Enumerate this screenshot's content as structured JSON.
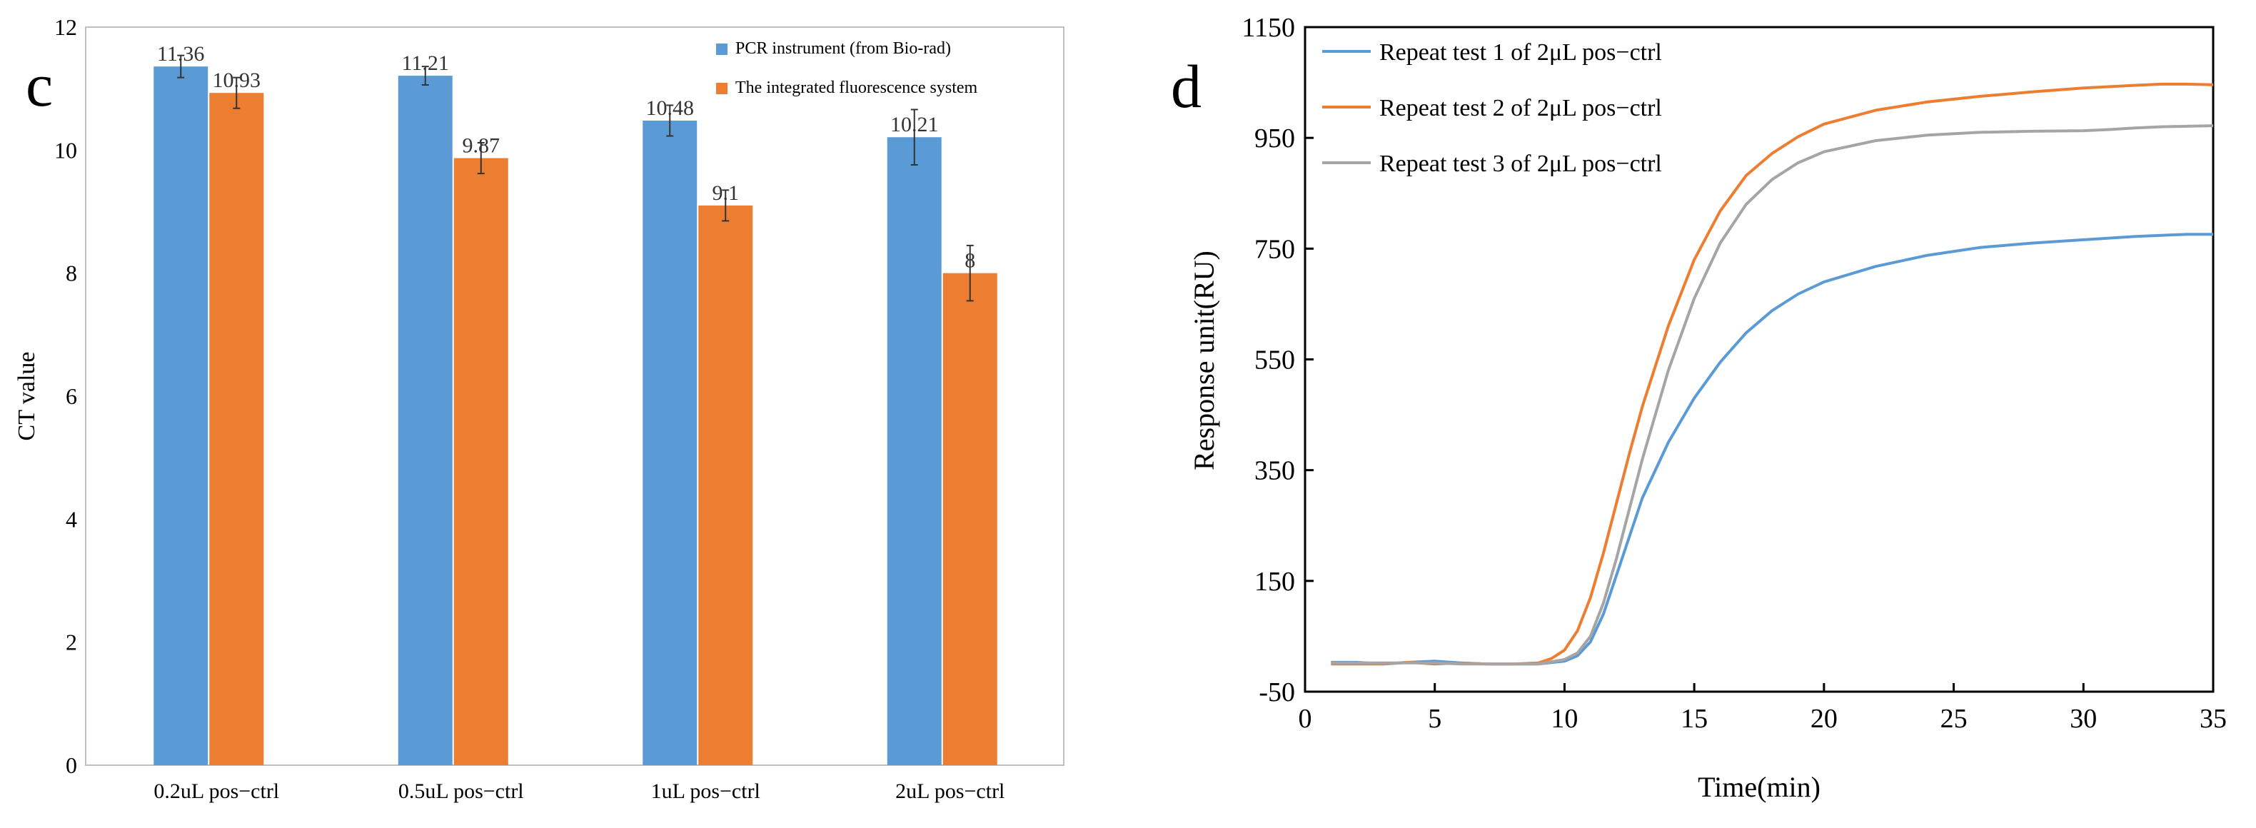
{
  "panels": {
    "left_label": "c",
    "right_label": "d"
  },
  "chart_data": [
    {
      "type": "bar",
      "panel": "c",
      "title": "",
      "xlabel": "",
      "ylabel": "CT value",
      "ylim": [
        0,
        12
      ],
      "yticks": [
        0,
        2,
        4,
        6,
        8,
        10,
        12
      ],
      "categories": [
        "0.2uL pos−ctrl",
        "0.5uL pos−ctrl",
        "1uL  pos−ctrl",
        "2uL  pos−ctrl"
      ],
      "series": [
        {
          "name": "PCR instrument (from Bio-rad)",
          "color": "#5b9bd5",
          "values": [
            11.36,
            11.21,
            10.48,
            10.21
          ],
          "labels": [
            "11.36",
            "11.21",
            "10.48",
            "10.21"
          ],
          "errors": [
            0.18,
            0.15,
            0.25,
            0.45
          ]
        },
        {
          "name": "The integrated fluorescence system",
          "color": "#ed7d31",
          "values": [
            10.93,
            9.87,
            9.1,
            8.0
          ],
          "labels": [
            "10.93",
            "9.87",
            "9.1",
            "8"
          ],
          "errors": [
            0.25,
            0.25,
            0.25,
            0.45
          ]
        }
      ],
      "legend": "top-right",
      "grid": false
    },
    {
      "type": "line",
      "panel": "d",
      "title": "",
      "xlabel": "Time(min)",
      "ylabel": "Response unit(RU)",
      "xlim": [
        0,
        35
      ],
      "ylim": [
        -50,
        1150
      ],
      "xticks": [
        0,
        5,
        10,
        15,
        20,
        25,
        30,
        35
      ],
      "yticks": [
        -50,
        150,
        350,
        550,
        750,
        950,
        1150
      ],
      "legend": "top-left",
      "grid": false,
      "series": [
        {
          "name": "Repeat test 1 of 2μL pos−ctrl",
          "color": "#5b9bd5",
          "x": [
            1,
            2,
            3,
            4,
            5,
            6,
            7,
            8,
            9,
            10,
            10.5,
            11,
            11.5,
            12,
            12.5,
            13,
            14,
            15,
            16,
            17,
            18,
            19,
            20,
            22,
            24,
            26,
            28,
            30,
            32,
            33,
            34,
            35
          ],
          "y": [
            3,
            3,
            0,
            3,
            5,
            2,
            0,
            0,
            0,
            5,
            15,
            40,
            90,
            160,
            230,
            300,
            400,
            480,
            545,
            598,
            638,
            668,
            690,
            718,
            738,
            752,
            760,
            766,
            772,
            774,
            776,
            776
          ]
        },
        {
          "name": "Repeat test 2 of 2μL pos−ctrl",
          "color": "#ed7d31",
          "x": [
            1,
            2,
            3,
            4,
            5,
            6,
            7,
            8,
            9,
            9.5,
            10,
            10.5,
            11,
            11.5,
            12,
            12.5,
            13,
            14,
            15,
            16,
            17,
            18,
            19,
            20,
            22,
            24,
            26,
            28,
            30,
            32,
            33,
            34,
            35
          ],
          "y": [
            0,
            0,
            0,
            3,
            0,
            2,
            0,
            0,
            2,
            10,
            25,
            60,
            120,
            200,
            290,
            380,
            465,
            610,
            730,
            818,
            882,
            922,
            952,
            975,
            1000,
            1015,
            1025,
            1033,
            1040,
            1045,
            1047,
            1047,
            1046
          ]
        },
        {
          "name": "Repeat test 3 of 2μL pos−ctrl",
          "color": "#a5a5a5",
          "x": [
            1,
            2,
            3,
            4,
            5,
            6,
            7,
            8,
            9,
            10,
            10.5,
            11,
            11.5,
            12,
            12.5,
            13,
            14,
            15,
            16,
            17,
            18,
            19,
            20,
            22,
            24,
            26,
            28,
            30,
            31,
            32,
            33,
            34,
            35
          ],
          "y": [
            2,
            2,
            2,
            2,
            2,
            0,
            0,
            0,
            0,
            8,
            20,
            50,
            110,
            190,
            280,
            370,
            530,
            660,
            760,
            830,
            875,
            905,
            925,
            945,
            955,
            960,
            962,
            963,
            965,
            968,
            970,
            971,
            972
          ]
        }
      ]
    }
  ]
}
